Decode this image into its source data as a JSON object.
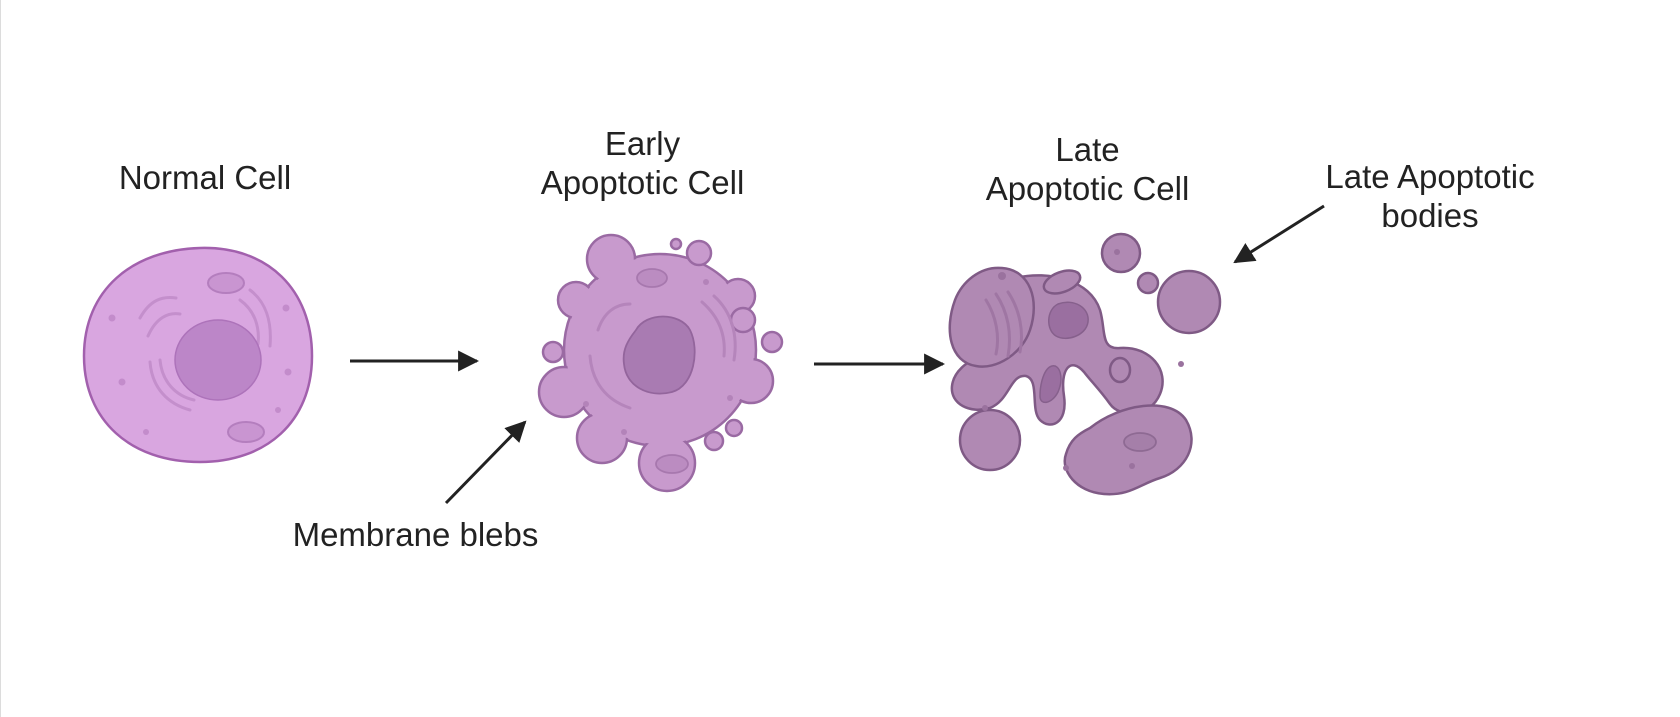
{
  "labels": {
    "normal_cell": "Normal Cell",
    "early_line1": "Early",
    "early_line2": "Apoptotic Cell",
    "late_line1": "Late",
    "late_line2": "Apoptotic Cell",
    "bodies_line1": "Late Apoptotic",
    "bodies_line2": "bodies",
    "membrane_blebs": "Membrane blebs"
  },
  "colors": {
    "normal_cytoplasm": "#d9a6e0",
    "normal_outline": "#a260ad",
    "normal_nucleus": "#bc86c8",
    "early_cytoplasm": "#c89acd",
    "early_outline": "#9a6aa3",
    "early_nucleus": "#a97bb2",
    "late_cytoplasm": "#b089b3",
    "late_outline": "#7f5a85",
    "late_nucleus": "#9a6fa0",
    "arrow": "#222222",
    "text": "#222222"
  }
}
